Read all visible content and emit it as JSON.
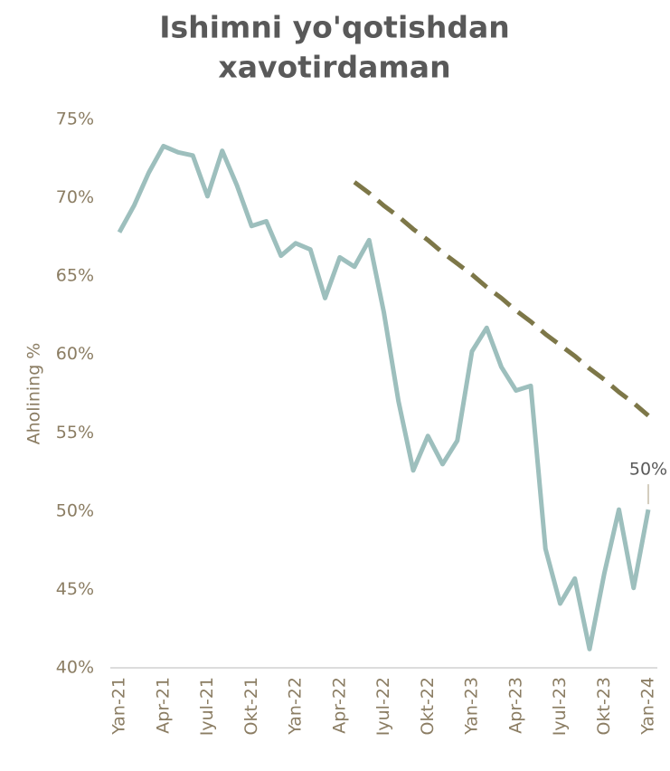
{
  "chart_data": {
    "type": "line",
    "title": [
      "Ishimni yo'qotishdan",
      "xavotirdaman"
    ],
    "y_label": "Aholining %",
    "categories": [
      "Yan-21",
      null,
      null,
      "Apr-21",
      null,
      null,
      "Iyul-21",
      null,
      null,
      "Okt-21",
      null,
      null,
      "Yan-22",
      null,
      null,
      "Apr-22",
      null,
      null,
      "Iyul-22",
      null,
      null,
      "Okt-22",
      null,
      null,
      "Yan-23",
      null,
      null,
      "Apr-23",
      null,
      null,
      "Iyul-23",
      null,
      null,
      "Okt-23",
      null,
      null,
      "Yan-24"
    ],
    "series": [
      {
        "name": "Aholining %",
        "color": "#9dbfbd",
        "style": "solid",
        "values": [
          67.8,
          69.5,
          71.6,
          73.3,
          72.9,
          72.7,
          70.1,
          73.0,
          70.8,
          68.2,
          68.5,
          66.3,
          67.1,
          66.7,
          63.6,
          66.2,
          65.6,
          67.3,
          62.7,
          57.0,
          52.6,
          54.8,
          53.0,
          54.5,
          60.2,
          61.7,
          59.2,
          57.7,
          58.0,
          47.6,
          44.1,
          45.7,
          41.2,
          46.0,
          50.1,
          45.1,
          50.1
        ],
        "value_labels": [
          null,
          null,
          null,
          null,
          null,
          null,
          null,
          null,
          null,
          null,
          null,
          null,
          null,
          null,
          null,
          null,
          null,
          null,
          null,
          null,
          null,
          null,
          null,
          null,
          null,
          null,
          null,
          null,
          null,
          null,
          null,
          null,
          null,
          null,
          null,
          null,
          "50%"
        ]
      },
      {
        "name": "Trend",
        "color": "#7d7748",
        "style": "dashed",
        "values": [
          null,
          null,
          null,
          null,
          null,
          null,
          null,
          null,
          null,
          null,
          null,
          null,
          null,
          null,
          null,
          null,
          71.0,
          70.3,
          69.5,
          68.8,
          68.0,
          67.3,
          66.5,
          65.8,
          65.1,
          64.3,
          63.6,
          62.8,
          62.1,
          61.3,
          60.6,
          59.9,
          59.1,
          58.4,
          57.6,
          56.9,
          56.1
        ]
      }
    ],
    "ylim": [
      40,
      75
    ],
    "yticks": [
      {
        "value": 40,
        "label": "40%"
      },
      {
        "value": 45,
        "label": "45%"
      },
      {
        "value": 50,
        "label": "50%"
      },
      {
        "value": 55,
        "label": "55%"
      },
      {
        "value": 60,
        "label": "60%"
      },
      {
        "value": 65,
        "label": "65%"
      },
      {
        "value": 70,
        "label": "70%"
      },
      {
        "value": 75,
        "label": "75%"
      }
    ],
    "grid": false,
    "legend": false
  }
}
